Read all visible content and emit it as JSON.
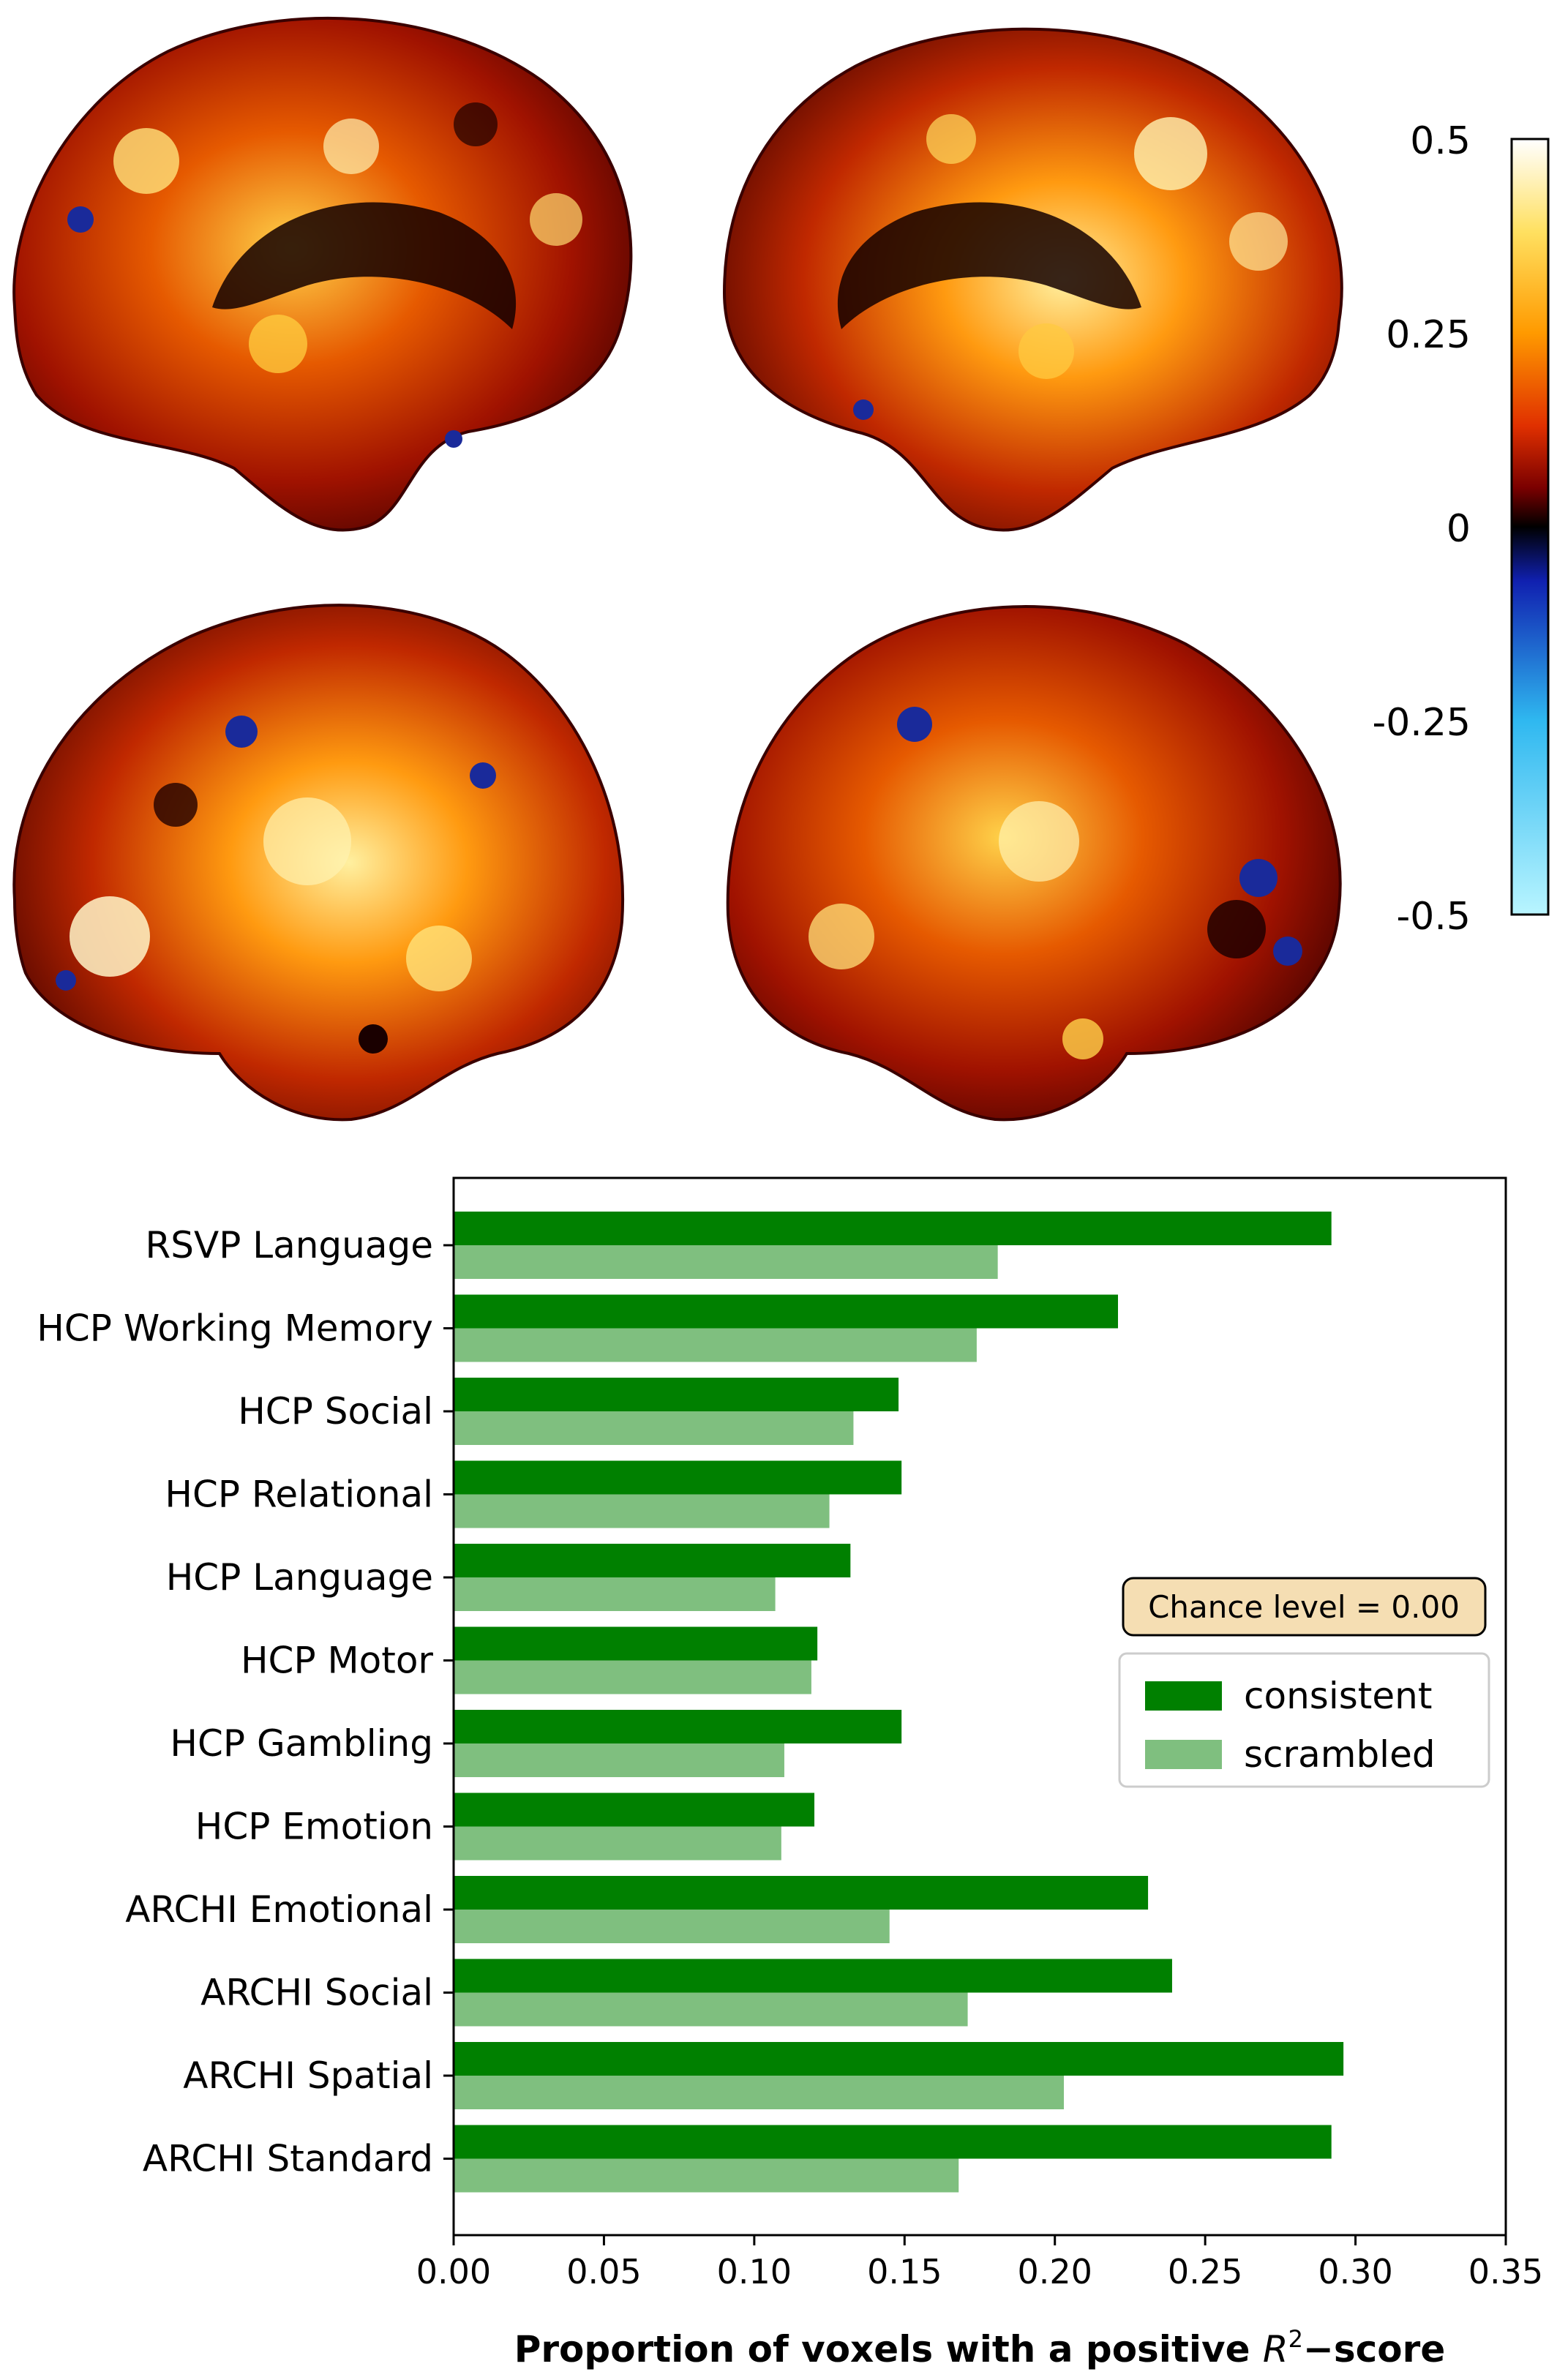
{
  "colorbar": {
    "ticks": [
      "0.5",
      "0.25",
      "0",
      "-0.25",
      "-0.5"
    ],
    "range": [
      -0.5,
      0.5
    ],
    "colormap": [
      "#b9f5ff",
      "#2fb8f0",
      "#1020b0",
      "#000000",
      "#7a0000",
      "#e03000",
      "#ff9a00",
      "#ffe060",
      "#ffffff"
    ]
  },
  "chart_data": {
    "type": "bar",
    "orientation": "horizontal",
    "categories": [
      "RSVP Language",
      "HCP Working Memory",
      "HCP Social",
      "HCP Relational",
      "HCP Language",
      "HCP Motor",
      "HCP Gambling",
      "HCP Emotion",
      "ARCHI Emotional",
      "ARCHI Social",
      "ARCHI Spatial",
      "ARCHI Standard"
    ],
    "series": [
      {
        "name": "consistent",
        "color": "#008000",
        "values": [
          0.292,
          0.221,
          0.148,
          0.149,
          0.132,
          0.121,
          0.149,
          0.12,
          0.231,
          0.239,
          0.296,
          0.292
        ]
      },
      {
        "name": "scrambled",
        "color": "#7fbf7f",
        "values": [
          0.181,
          0.174,
          0.133,
          0.125,
          0.107,
          0.119,
          0.11,
          0.109,
          0.145,
          0.171,
          0.203,
          0.168
        ]
      }
    ],
    "xticks": [
      "0.00",
      "0.05",
      "0.10",
      "0.15",
      "0.20",
      "0.25",
      "0.30",
      "0.35"
    ],
    "xlim": [
      0,
      0.35
    ],
    "xlabel_prefix": "Proportion of voxels with a positive ",
    "xlabel_var": "R",
    "xlabel_sup": "2",
    "xlabel_suffix": "−score",
    "annotation": "Chance level = 0.00",
    "legend_position": "center-right"
  }
}
